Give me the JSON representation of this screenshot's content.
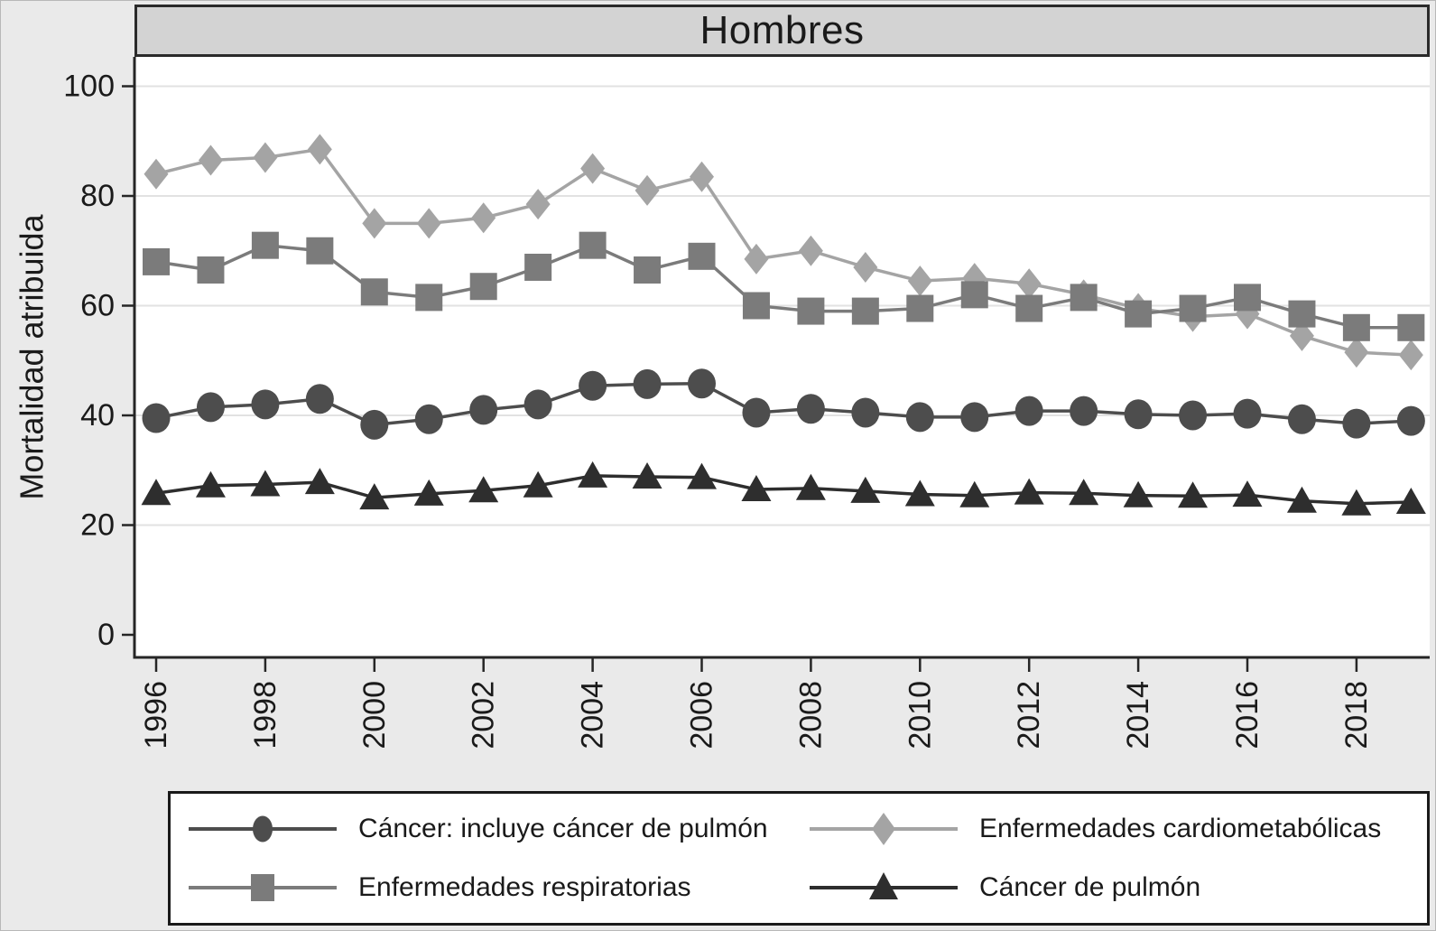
{
  "figure": {
    "title": "Hombres",
    "background_color": "#eaeaea",
    "plot_background": "#ffffff",
    "title_bar_color": "#d3d3d3"
  },
  "chart_data": {
    "type": "line",
    "title": "Hombres",
    "xlabel": "",
    "ylabel": "Mortalidad atribuida",
    "ylim": [
      0,
      100
    ],
    "y_ticks": [
      0,
      20,
      40,
      60,
      80,
      100
    ],
    "grid": "horizontal",
    "legend_position": "bottom",
    "x": [
      1996,
      1997,
      1998,
      1999,
      2000,
      2001,
      2002,
      2003,
      2004,
      2005,
      2006,
      2007,
      2008,
      2009,
      2010,
      2011,
      2012,
      2013,
      2014,
      2015,
      2016,
      2017,
      2018,
      2019
    ],
    "x_tick_labels": [
      "1996",
      "1998",
      "2000",
      "2002",
      "2004",
      "2006",
      "2008",
      "2010",
      "2012",
      "2014",
      "2016",
      "2018"
    ],
    "series": [
      {
        "name": "Cáncer: incluye cáncer de pulmón",
        "marker": "circle",
        "color": "#4d4d4d",
        "values": [
          39.5,
          41.5,
          42,
          43,
          38.3,
          39.3,
          41,
          42,
          45.4,
          45.7,
          45.8,
          40.5,
          41.2,
          40.5,
          39.7,
          39.7,
          40.8,
          40.8,
          40.2,
          40,
          40.3,
          39.3,
          38.5,
          39
        ]
      },
      {
        "name": "Enfermedades respiratorias",
        "marker": "square",
        "color": "#7b7b7b",
        "values": [
          68,
          66.5,
          71,
          70,
          62.5,
          61.5,
          63.5,
          67,
          71,
          66.5,
          69,
          60,
          59,
          59,
          59.5,
          62,
          59.5,
          61.5,
          58.5,
          59.5,
          61.5,
          58.5,
          56,
          56
        ]
      },
      {
        "name": "Enfermedades cardiometabólicas",
        "marker": "diamond",
        "color": "#a4a4a4",
        "values": [
          84,
          86.5,
          87,
          88.5,
          75,
          75,
          76,
          78.5,
          85,
          81,
          83.5,
          68.5,
          70,
          67,
          64.5,
          65,
          64,
          62,
          59.5,
          58,
          58.5,
          54.5,
          51.5,
          51
        ]
      },
      {
        "name": "Cáncer de pulmón",
        "marker": "triangle",
        "color": "#2e2e2e",
        "values": [
          25.8,
          27.2,
          27.4,
          27.8,
          25,
          25.7,
          26.3,
          27.2,
          29,
          28.8,
          28.7,
          26.5,
          26.7,
          26.2,
          25.6,
          25.4,
          25.9,
          25.8,
          25.4,
          25.3,
          25.5,
          24.4,
          23.9,
          24.2
        ]
      }
    ]
  }
}
